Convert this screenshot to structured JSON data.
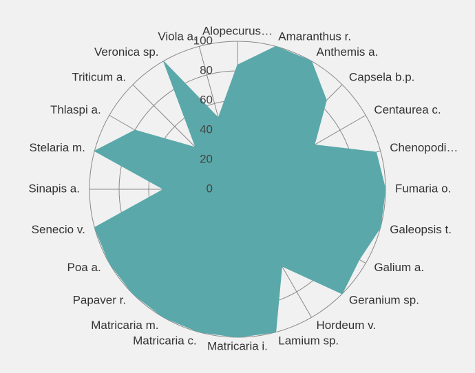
{
  "chart_data": {
    "type": "radar",
    "categories": [
      "Alopecurus…",
      "Amaranthus r.",
      "Anthemis a.",
      "Capsela b.p.",
      "Centaurea c.",
      "Chenopodi…",
      "Fumaria o.",
      "Galeopsis t.",
      "Galium a.",
      "Geranium sp.",
      "Hordeum v.",
      "Lamium sp.",
      "Matricaria i.",
      "Matricaria c.",
      "Matricaria m.",
      "Papaver r.",
      "Poa a.",
      "Senecio v.",
      "Sinapis a.",
      "Stelaria m.",
      "Thlaspi a.",
      "Triticum a.",
      "Veronica sp.",
      "Viola a."
    ],
    "values": [
      84,
      100,
      100,
      85,
      60,
      97,
      100,
      100,
      95,
      100,
      60,
      100,
      100,
      100,
      100,
      100,
      100,
      100,
      50,
      100,
      80,
      40,
      100,
      50
    ],
    "color": "#5aa8aa",
    "ylim": [
      0,
      100
    ],
    "yticks": [
      0,
      20,
      40,
      60,
      80,
      100
    ],
    "grid": true
  }
}
